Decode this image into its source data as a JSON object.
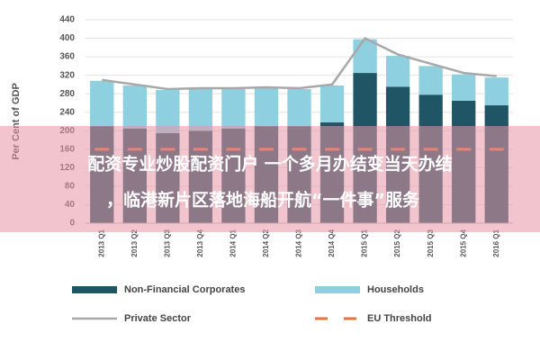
{
  "chart_data": {
    "type": "stacked_bar_line",
    "y_label": "Per Cent of GDP",
    "categories": [
      "2013 Q1",
      "2013 Q2",
      "2013 Q3",
      "2013 Q4",
      "2014 Q1",
      "2014 Q2",
      "2014 Q3",
      "2014 Q4",
      "2015 Q1",
      "2015 Q2",
      "2015 Q3",
      "2015 Q4",
      "2016 Q1"
    ],
    "series": [
      {
        "name": "Non-Financial Corporates",
        "color": "#1f5564",
        "kind": "bar",
        "values": [
          210,
          205,
          195,
          200,
          205,
          210,
          210,
          218,
          325,
          295,
          278,
          265,
          255
        ]
      },
      {
        "name": "Households",
        "color": "#8ecfe0",
        "kind": "bar",
        "values": [
          98,
          93,
          93,
          90,
          85,
          82,
          80,
          80,
          73,
          67,
          62,
          57,
          60
        ]
      },
      {
        "name": "Private Sector",
        "color": "#a8a8a8",
        "kind": "line",
        "values": [
          310,
          300,
          290,
          292,
          292,
          294,
          292,
          300,
          400,
          365,
          345,
          325,
          318
        ]
      },
      {
        "name": "EU Threshold",
        "color": "#e8703a",
        "kind": "dash",
        "values": [
          160,
          160,
          160,
          160,
          160,
          160,
          160,
          160,
          160,
          160,
          160,
          160,
          160
        ]
      }
    ],
    "ylim": [
      0,
      440
    ],
    "yticks": [
      0,
      40,
      80,
      120,
      160,
      200,
      240,
      280,
      320,
      360,
      400,
      440
    ],
    "grid": true,
    "overlay_text": [
      "配资专业炒股配资门户 一个多月办结变当天办结",
      "，临港新片区落地海船开航“一件事”服务"
    ]
  }
}
